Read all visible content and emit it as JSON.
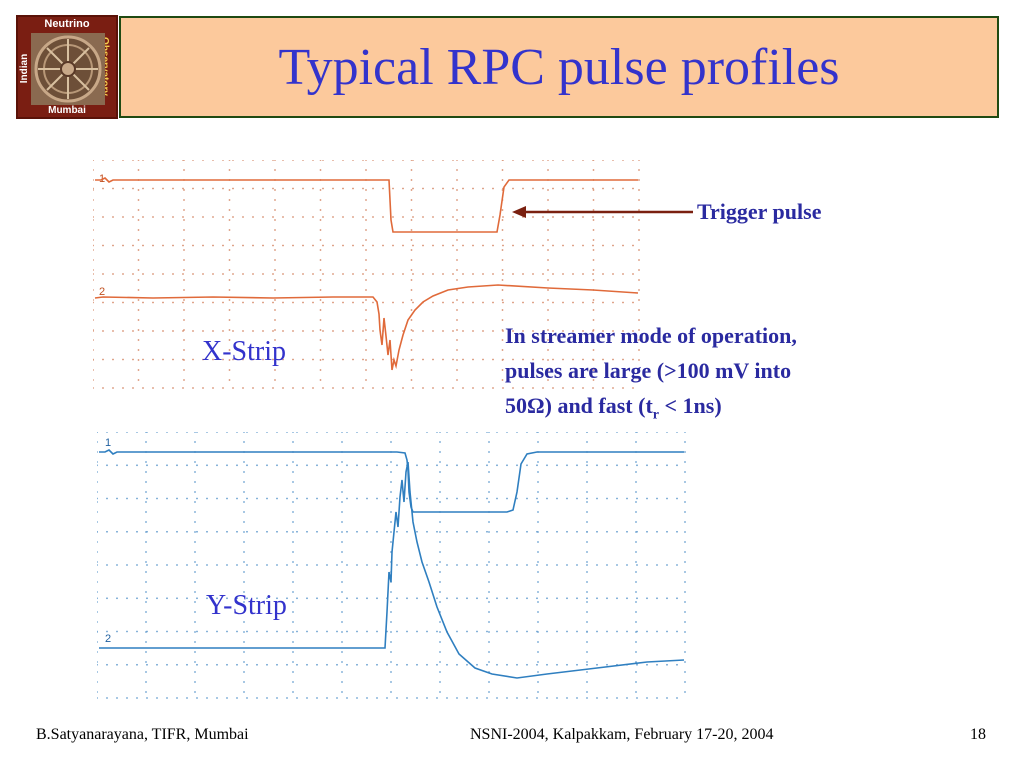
{
  "logo": {
    "top_text": "Neutrino",
    "left_text": "Indian",
    "right_text": "Observatory",
    "bottom_text": "Mumbai"
  },
  "title": "Typical RPC pulse profiles",
  "scope_x": {
    "label": "X-Strip",
    "channel_1_marker": "1",
    "channel_2_marker": "2",
    "trace_color": "#e06a3a",
    "series": [
      {
        "channel": "1",
        "description": "Trigger pulse"
      },
      {
        "channel": "2",
        "description": "X-Strip pulse"
      }
    ]
  },
  "scope_y": {
    "label": "Y-Strip",
    "channel_1_marker": "1",
    "channel_2_marker": "2",
    "trace_color": "#2f7fc0"
  },
  "annotation": {
    "trigger_label": "Trigger pulse",
    "note_line1": "In streamer mode of operation,",
    "note_line2": "pulses are large (>100 mV into",
    "note_line3_a": "50Ω)  and fast (t",
    "note_line3_sub": "r",
    "note_line3_b": " < 1ns)",
    "arrow_color": "#7a2010",
    "text_color": "#2a2aa0"
  },
  "footer": {
    "left": "B.Satyanarayana, TIFR, Mumbai",
    "center": "NSNI-2004, Kalpakkam, February 17-20, 2004",
    "page_number": "18"
  }
}
